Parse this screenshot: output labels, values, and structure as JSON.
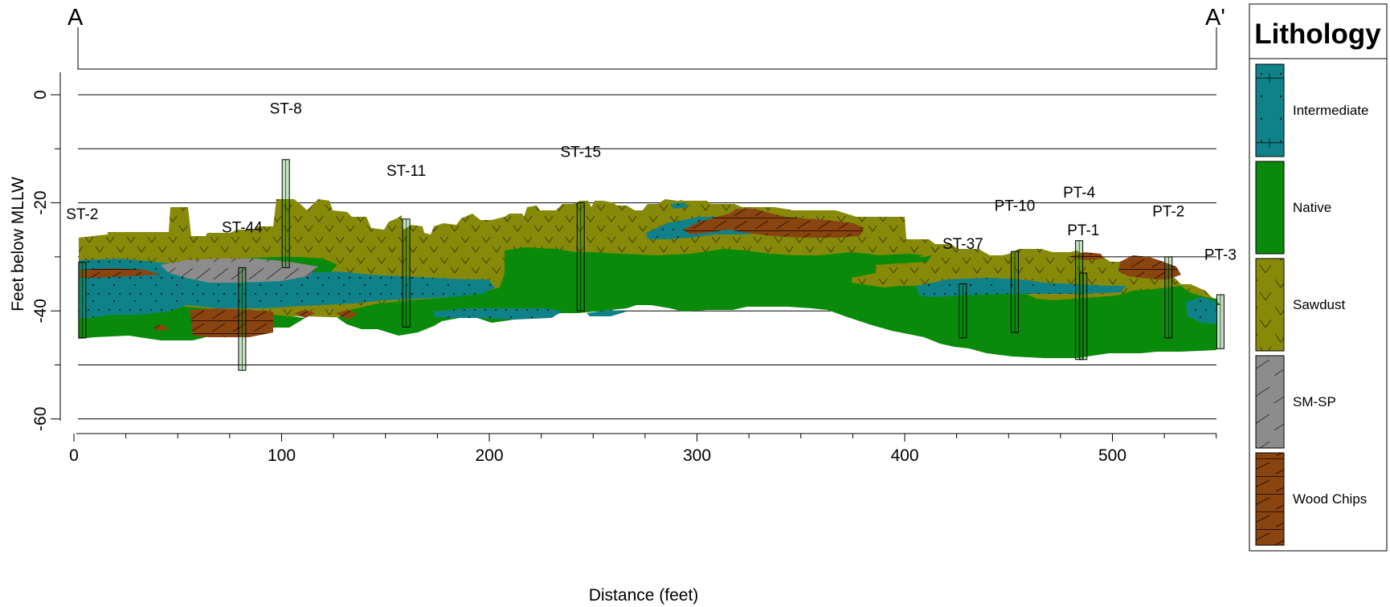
{
  "section": {
    "start_label": "A",
    "end_label": "A'"
  },
  "axes": {
    "x_title": "Distance (feet)",
    "y_title": "Feet below MLLW",
    "x_range": [
      0,
      550
    ],
    "y_range": [
      -62,
      6
    ],
    "x_ticks": [
      "0",
      "100",
      "200",
      "300",
      "400",
      "500"
    ],
    "y_ticks": [
      "0",
      "-20",
      "-40",
      "-60"
    ],
    "gridlines": [
      0,
      -10,
      -20,
      -30,
      -40,
      -50,
      -60
    ]
  },
  "legend": {
    "title": "Lithology",
    "items": [
      {
        "label": "Intermediate",
        "color": "#0f8289",
        "pattern": "dots-bricks"
      },
      {
        "label": "Native",
        "color": "#0a8a0a",
        "pattern": "solid"
      },
      {
        "label": "Sawdust",
        "color": "#878a08",
        "pattern": "chevrons"
      },
      {
        "label": "SM-SP",
        "color": "#8c8c8c",
        "pattern": "diagonals"
      },
      {
        "label": "Wood Chips",
        "color": "#8a4410",
        "pattern": "bricks-slant"
      }
    ]
  },
  "borings": [
    {
      "name": "ST-2",
      "x": 4,
      "top": -31,
      "bottom": -45,
      "label_elev": -23
    },
    {
      "name": "ST-44",
      "x": 81,
      "top": -32,
      "bottom": -51,
      "label_elev": -25.5
    },
    {
      "name": "ST-8",
      "x": 102,
      "top": -12,
      "bottom": -32,
      "label_elev": -3.5
    },
    {
      "name": "ST-11",
      "x": 160,
      "top": -23,
      "bottom": -43,
      "label_elev": -15
    },
    {
      "name": "ST-15",
      "x": 244,
      "top": -20,
      "bottom": -40,
      "label_elev": -11.5
    },
    {
      "name": "ST-37",
      "x": 428,
      "top": -35,
      "bottom": -45,
      "label_elev": -28.5
    },
    {
      "name": "PT-10",
      "x": 453,
      "top": -29,
      "bottom": -44,
      "label_elev": -21.5
    },
    {
      "name": "PT-4",
      "x": 484,
      "top": -27,
      "bottom": -49,
      "label_elev": -19
    },
    {
      "name": "PT-1",
      "x": 486,
      "top": -33,
      "bottom": -49,
      "label_elev": -26
    },
    {
      "name": "PT-2",
      "x": 527,
      "top": -30,
      "bottom": -45,
      "label_elev": -22.5
    },
    {
      "name": "PT-3",
      "x": 552,
      "top": -37,
      "bottom": -47,
      "label_elev": -30.5
    }
  ]
}
